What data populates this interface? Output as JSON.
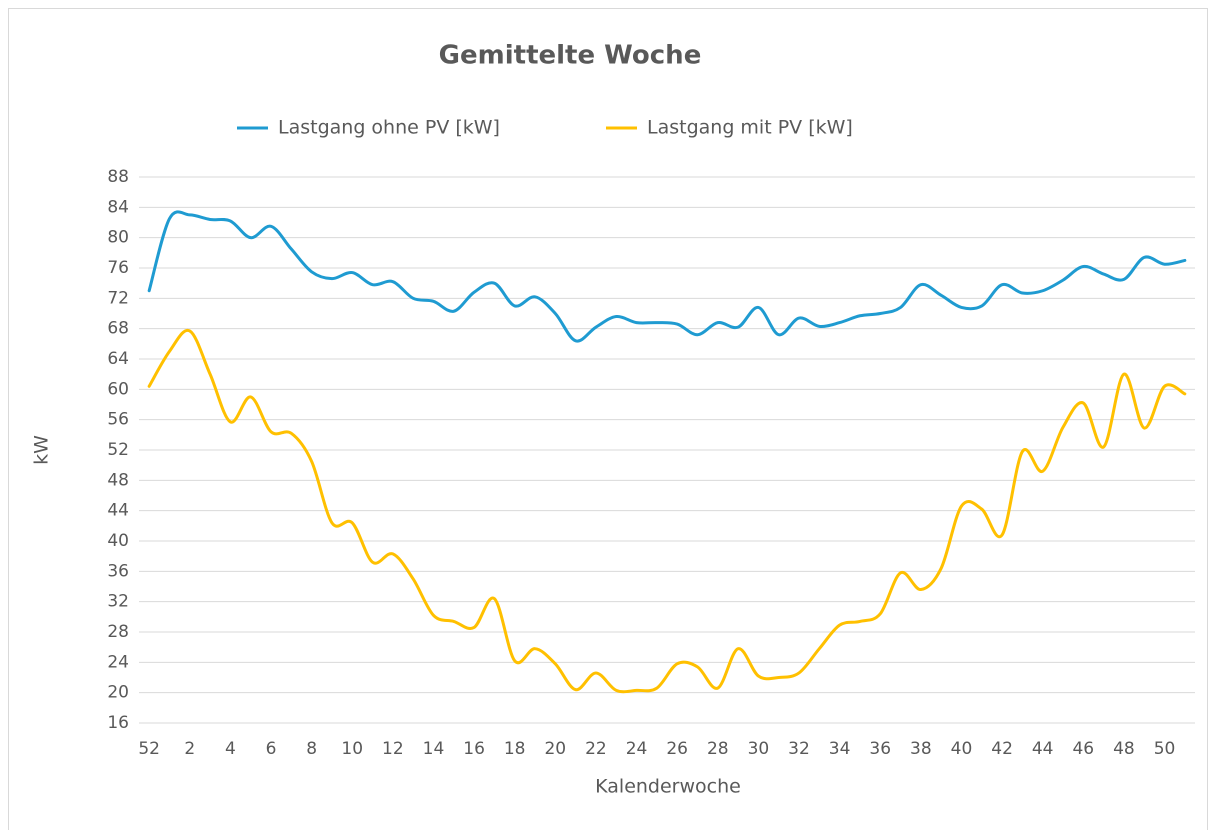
{
  "chart_data": {
    "type": "line",
    "title": "Gemittelte Woche",
    "x_label": "Kalenderwoche",
    "y_label": "kW",
    "categories": [
      "52",
      null,
      "2",
      null,
      "4",
      null,
      "6",
      null,
      "8",
      null,
      "10",
      null,
      "12",
      null,
      "14",
      null,
      "16",
      null,
      "18",
      null,
      "20",
      null,
      "22",
      null,
      "24",
      null,
      "26",
      null,
      "28",
      null,
      "30",
      null,
      "32",
      null,
      "34",
      null,
      "36",
      null,
      "38",
      null,
      "40",
      null,
      "42",
      null,
      "44",
      null,
      "46",
      null,
      "48",
      null,
      "50",
      null
    ],
    "series": [
      {
        "name": "Lastgang ohne PV [kW]",
        "color": "#1f9bd1",
        "values": [
          73.0,
          82.5,
          83.0,
          82.4,
          82.2,
          80.0,
          81.5,
          78.5,
          75.5,
          74.6,
          75.4,
          73.8,
          74.2,
          72.0,
          71.6,
          70.3,
          72.8,
          74.0,
          71.0,
          72.2,
          70.0,
          66.4,
          68.2,
          69.6,
          68.8,
          68.8,
          68.6,
          67.2,
          68.8,
          68.2,
          70.8,
          67.2,
          69.4,
          68.3,
          68.8,
          69.7,
          70.0,
          70.8,
          73.8,
          72.4,
          70.8,
          71.0,
          73.8,
          72.7,
          73.0,
          74.4,
          76.2,
          75.2,
          74.5,
          77.4,
          76.5,
          77.0
        ]
      },
      {
        "name": "Lastgang mit PV [kW]",
        "color": "#ffc000",
        "values": [
          60.4,
          65.0,
          67.7,
          62.0,
          55.7,
          59.0,
          54.4,
          54.2,
          50.5,
          42.4,
          42.4,
          37.2,
          38.3,
          35.0,
          30.2,
          29.4,
          28.6,
          32.4,
          24.2,
          25.8,
          23.8,
          20.4,
          22.6,
          20.3,
          20.3,
          20.6,
          23.8,
          23.4,
          20.6,
          25.8,
          22.2,
          22.0,
          22.6,
          25.8,
          28.9,
          29.4,
          30.4,
          35.8,
          33.6,
          36.4,
          44.6,
          44.2,
          40.8,
          51.8,
          49.2,
          55.0,
          58.2,
          52.4,
          62.0,
          54.9,
          60.4,
          59.4
        ]
      }
    ],
    "ylim": [
      16,
      88
    ],
    "yticks": [
      16,
      20,
      24,
      28,
      32,
      36,
      40,
      44,
      48,
      52,
      56,
      60,
      64,
      68,
      72,
      76,
      80,
      84,
      88
    ],
    "grid": true,
    "legend": "top"
  }
}
